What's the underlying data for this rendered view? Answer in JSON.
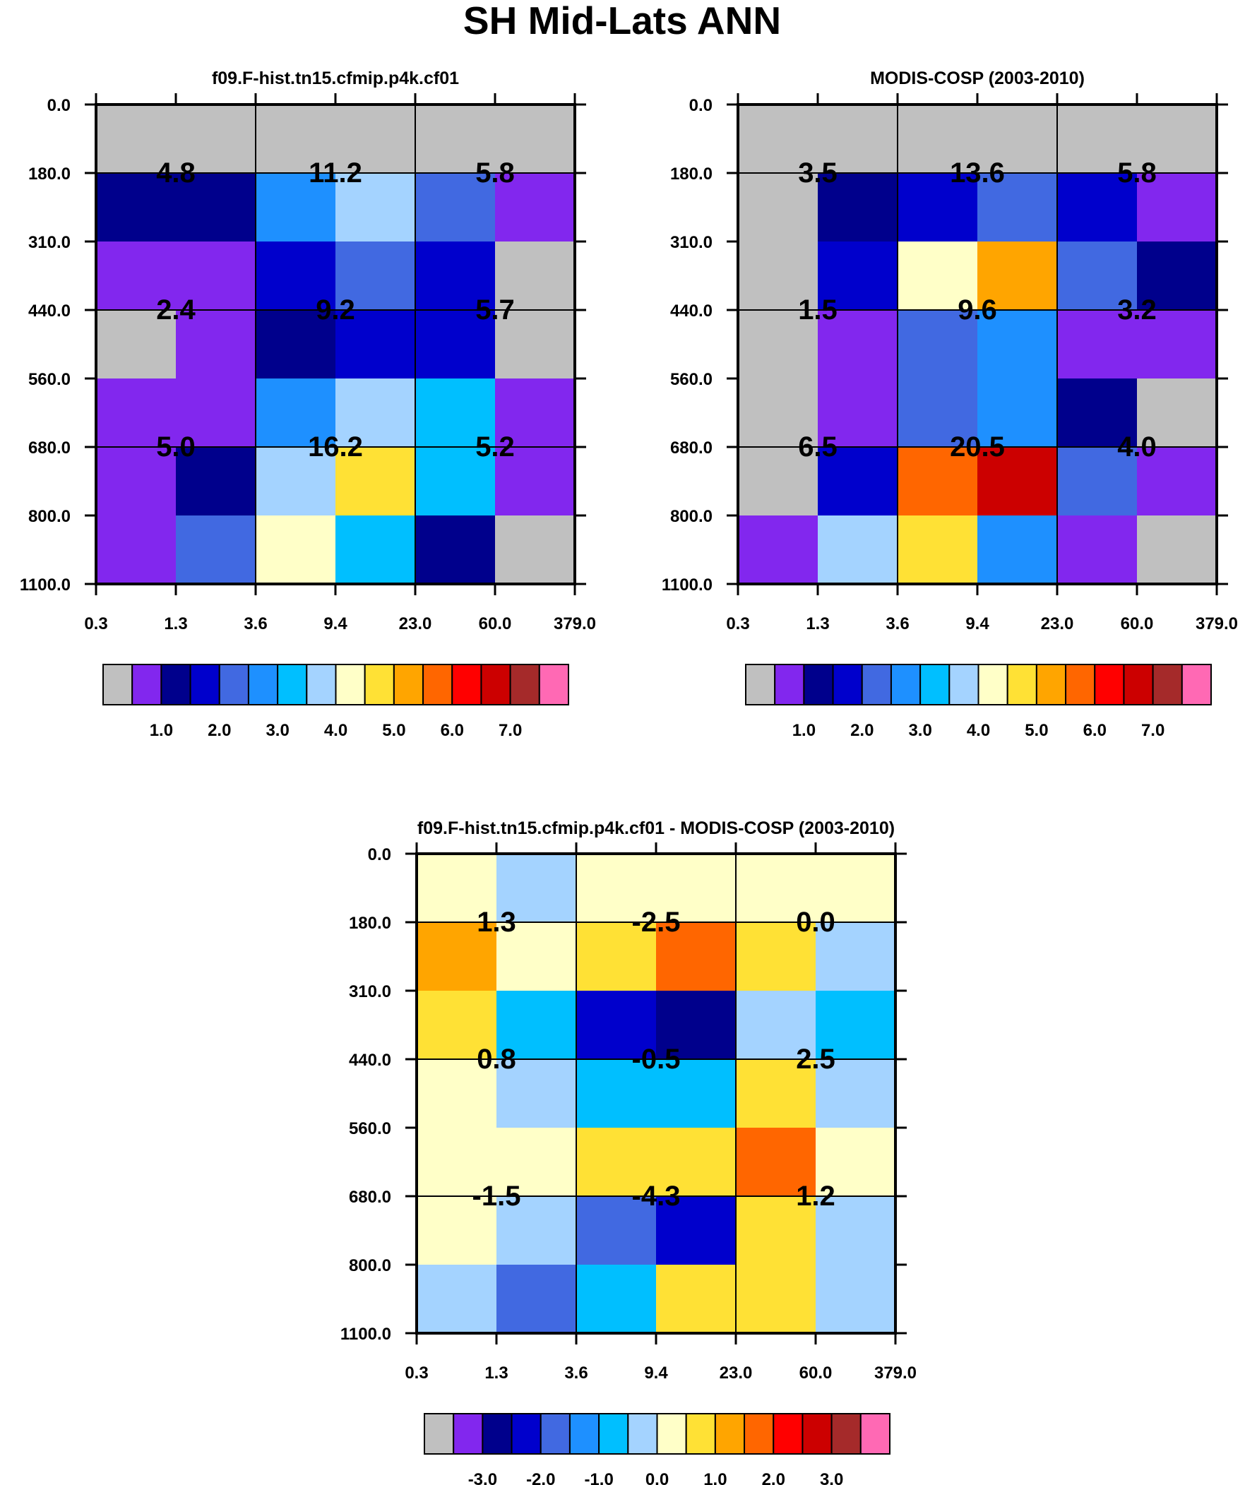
{
  "title": "SH Mid-Lats ANN",
  "colors": {
    "gray": "#c0c0c0",
    "purple": "#8227ee",
    "navy": "#00008c",
    "blue": "#0000cc",
    "royal": "#4169e1",
    "dodger": "#1e90ff",
    "sky": "#00bfff",
    "lightblue": "#a4d3ff",
    "cream": "#ffffc8",
    "yellow": "#ffe135",
    "gold": "#ffa500",
    "orange": "#ff6600",
    "red": "#ff0000",
    "darkred": "#cc0000",
    "brown": "#a52a2a",
    "pink": "#ff69b4"
  },
  "chart_data": [
    {
      "id": "model",
      "type": "heatmap",
      "title": "f09.F-hist.tn15.cfmip.p4k.cf01",
      "xlabel": "",
      "ylabel": "",
      "x_ticks": [
        "0.3",
        "1.3",
        "3.6",
        "9.4",
        "23.0",
        "60.0",
        "379.0"
      ],
      "y_ticks": [
        "0.0",
        "180.0",
        "310.0",
        "440.0",
        "560.0",
        "680.0",
        "800.0",
        "1100.0"
      ],
      "cells": [
        [
          "gray",
          "gray",
          "gray",
          "gray",
          "gray",
          "gray"
        ],
        [
          "navy",
          "navy",
          "dodger",
          "lightblue",
          "royal",
          "purple"
        ],
        [
          "purple",
          "purple",
          "blue",
          "royal",
          "blue",
          "gray"
        ],
        [
          "gray",
          "purple",
          "navy",
          "blue",
          "blue",
          "gray"
        ],
        [
          "purple",
          "purple",
          "dodger",
          "lightblue",
          "sky",
          "purple"
        ],
        [
          "purple",
          "navy",
          "lightblue",
          "yellow",
          "sky",
          "purple"
        ],
        [
          "purple",
          "royal",
          "cream",
          "sky",
          "navy",
          "gray"
        ]
      ],
      "block_labels": [
        [
          "4.8",
          "11.2",
          "5.8"
        ],
        [
          "2.4",
          "9.2",
          "5.7"
        ],
        [
          "5.0",
          "16.2",
          "5.2"
        ]
      ],
      "colorbar": {
        "colors": [
          "gray",
          "purple",
          "navy",
          "blue",
          "royal",
          "dodger",
          "sky",
          "lightblue",
          "cream",
          "yellow",
          "gold",
          "orange",
          "red",
          "darkred",
          "brown",
          "pink"
        ],
        "labels": [
          "1.0",
          "2.0",
          "3.0",
          "4.0",
          "5.0",
          "6.0",
          "7.0"
        ]
      }
    },
    {
      "id": "obs",
      "type": "heatmap",
      "title": "MODIS-COSP (2003-2010)",
      "xlabel": "",
      "ylabel": "",
      "x_ticks": [
        "0.3",
        "1.3",
        "3.6",
        "9.4",
        "23.0",
        "60.0",
        "379.0"
      ],
      "y_ticks": [
        "0.0",
        "180.0",
        "310.0",
        "440.0",
        "560.0",
        "680.0",
        "800.0",
        "1100.0"
      ],
      "cells": [
        [
          "gray",
          "gray",
          "gray",
          "gray",
          "gray",
          "gray"
        ],
        [
          "gray",
          "navy",
          "blue",
          "royal",
          "blue",
          "purple"
        ],
        [
          "gray",
          "blue",
          "cream",
          "gold",
          "royal",
          "navy"
        ],
        [
          "gray",
          "purple",
          "royal",
          "dodger",
          "purple",
          "purple"
        ],
        [
          "gray",
          "purple",
          "royal",
          "dodger",
          "navy",
          "gray"
        ],
        [
          "gray",
          "blue",
          "orange",
          "darkred",
          "royal",
          "purple"
        ],
        [
          "purple",
          "lightblue",
          "yellow",
          "dodger",
          "purple",
          "gray"
        ]
      ],
      "block_labels": [
        [
          "3.5",
          "13.6",
          "5.8"
        ],
        [
          "1.5",
          "9.6",
          "3.2"
        ],
        [
          "6.5",
          "20.5",
          "4.0"
        ]
      ],
      "colorbar": {
        "colors": [
          "gray",
          "purple",
          "navy",
          "blue",
          "royal",
          "dodger",
          "sky",
          "lightblue",
          "cream",
          "yellow",
          "gold",
          "orange",
          "red",
          "darkred",
          "brown",
          "pink"
        ],
        "labels": [
          "1.0",
          "2.0",
          "3.0",
          "4.0",
          "5.0",
          "6.0",
          "7.0"
        ]
      }
    },
    {
      "id": "diff",
      "type": "heatmap",
      "title": "f09.F-hist.tn15.cfmip.p4k.cf01 - MODIS-COSP (2003-2010)",
      "xlabel": "",
      "ylabel": "",
      "x_ticks": [
        "0.3",
        "1.3",
        "3.6",
        "9.4",
        "23.0",
        "60.0",
        "379.0"
      ],
      "y_ticks": [
        "0.0",
        "180.0",
        "310.0",
        "440.0",
        "560.0",
        "680.0",
        "800.0",
        "1100.0"
      ],
      "cells": [
        [
          "cream",
          "lightblue",
          "cream",
          "cream",
          "cream",
          "cream"
        ],
        [
          "gold",
          "cream",
          "yellow",
          "orange",
          "yellow",
          "lightblue"
        ],
        [
          "yellow",
          "sky",
          "blue",
          "navy",
          "lightblue",
          "sky"
        ],
        [
          "cream",
          "lightblue",
          "sky",
          "sky",
          "yellow",
          "lightblue"
        ],
        [
          "cream",
          "cream",
          "yellow",
          "yellow",
          "orange",
          "cream"
        ],
        [
          "cream",
          "lightblue",
          "royal",
          "blue",
          "yellow",
          "lightblue"
        ],
        [
          "lightblue",
          "royal",
          "sky",
          "yellow",
          "yellow",
          "lightblue"
        ]
      ],
      "block_labels": [
        [
          "1.3",
          "-2.5",
          "0.0"
        ],
        [
          "0.8",
          "-0.5",
          "2.5"
        ],
        [
          "-1.5",
          "-4.3",
          "1.2"
        ]
      ],
      "colorbar": {
        "colors": [
          "gray",
          "purple",
          "navy",
          "blue",
          "royal",
          "dodger",
          "sky",
          "lightblue",
          "cream",
          "yellow",
          "gold",
          "orange",
          "red",
          "darkred",
          "brown",
          "pink"
        ],
        "labels": [
          "-3.0",
          "-2.0",
          "-1.0",
          "0.0",
          "1.0",
          "2.0",
          "3.0"
        ]
      }
    }
  ]
}
